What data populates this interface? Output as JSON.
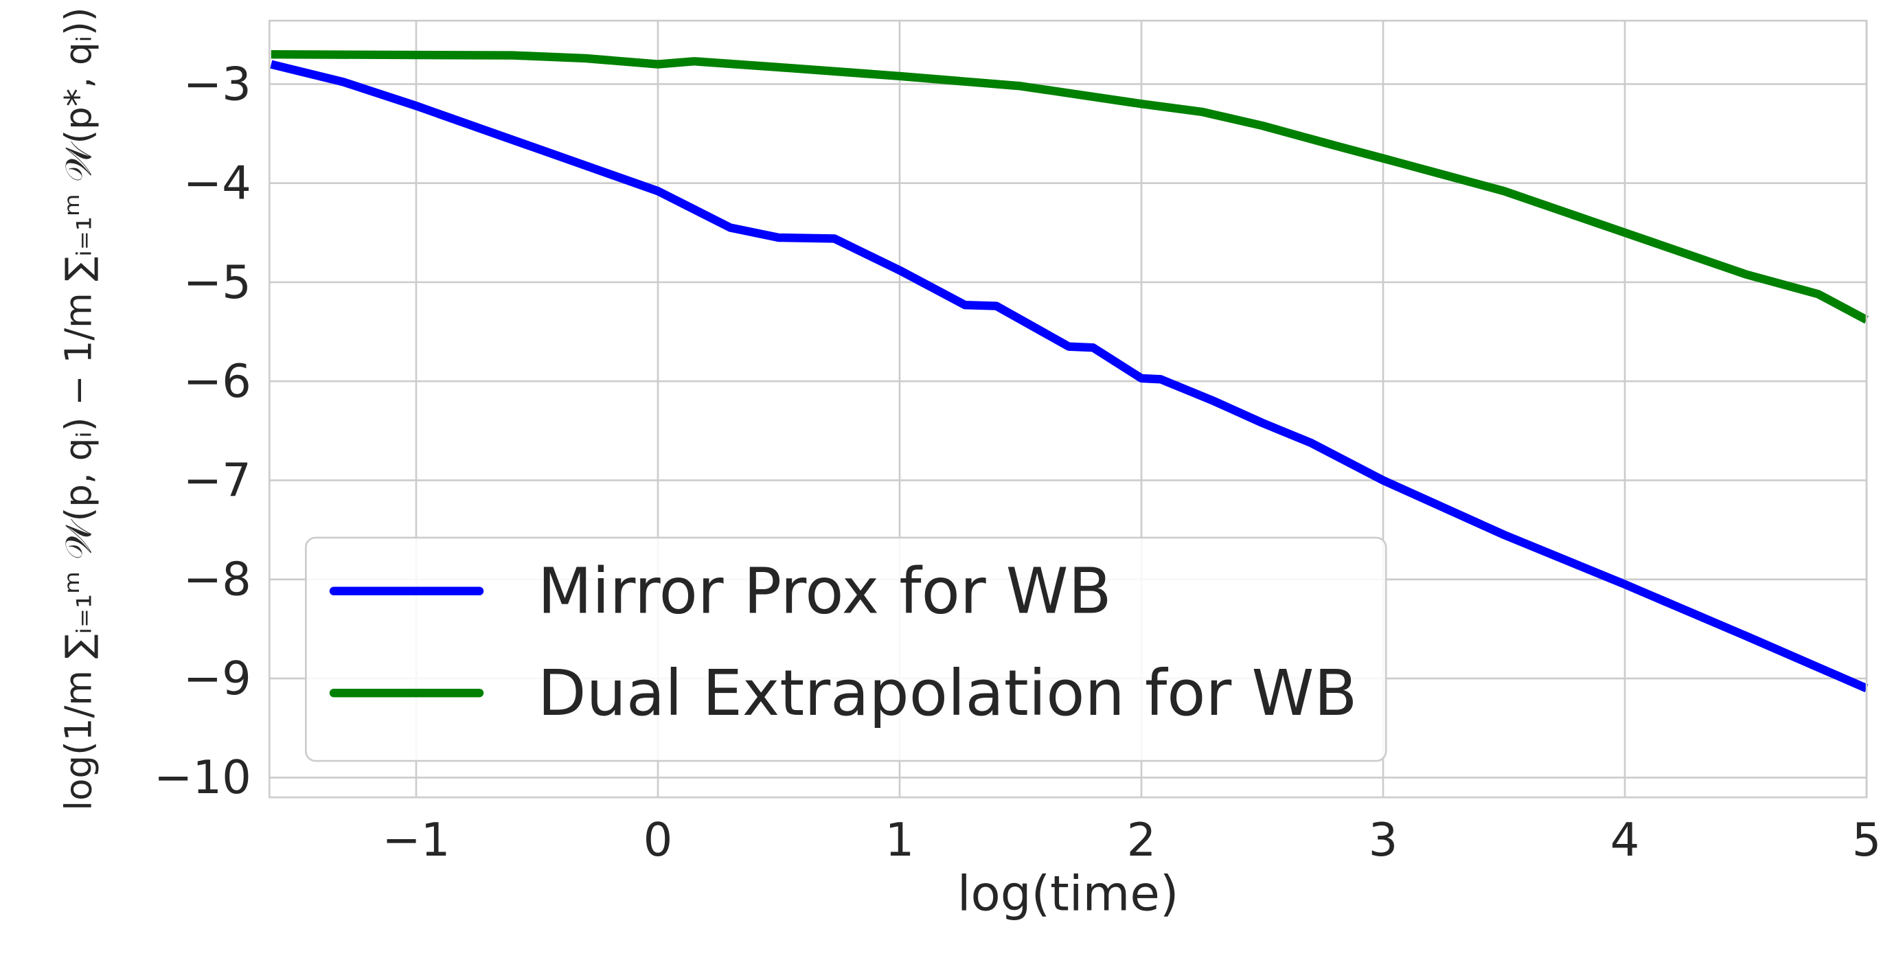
{
  "chart_data": {
    "type": "line",
    "xlabel": "log(time)",
    "ylabel": "log(1/m ∑ᵢ₌₁ᵐ 𝒲(p, qᵢ) − 1/m ∑ᵢ₌₁ᵐ 𝒲(p*, qᵢ))",
    "xlim": [
      -1.607,
      5
    ],
    "ylim": [
      -10.2,
      -2.36
    ],
    "xticks": [
      {
        "value": -1,
        "label": "−1"
      },
      0,
      1,
      2,
      3,
      4,
      5
    ],
    "yticks": [
      {
        "value": -3,
        "label": "−3"
      },
      {
        "value": -4,
        "label": "−4"
      },
      {
        "value": -5,
        "label": "−5"
      },
      {
        "value": -6,
        "label": "−6"
      },
      {
        "value": -7,
        "label": "−7"
      },
      {
        "value": -8,
        "label": "−8"
      },
      {
        "value": -9,
        "label": "−9"
      },
      {
        "value": -10,
        "label": "−10"
      }
    ],
    "grid": true,
    "legend": "lower left",
    "series": [
      {
        "name": "Mirror Prox for WB",
        "color": "#0000ff",
        "x": [
          -1.6,
          -1.3,
          -1,
          -0.5,
          0,
          0.3,
          0.5,
          0.73,
          1.0,
          1.27,
          1.4,
          1.7,
          1.8,
          2.0,
          2.08,
          2.3,
          2.5,
          2.7,
          3.0,
          3.5,
          4.0,
          4.5,
          5.0
        ],
        "values": [
          -2.8,
          -2.98,
          -3.22,
          -3.65,
          -4.08,
          -4.45,
          -4.55,
          -4.56,
          -4.88,
          -5.23,
          -5.24,
          -5.65,
          -5.66,
          -5.97,
          -5.98,
          -6.2,
          -6.42,
          -6.62,
          -7.0,
          -7.55,
          -8.05,
          -8.57,
          -9.1
        ]
      },
      {
        "name": "Dual Extrapolation for WB",
        "color": "#008000",
        "x": [
          -1.6,
          -0.6,
          -0.3,
          0,
          0.15,
          0.5,
          1.0,
          1.5,
          2.0,
          2.25,
          2.5,
          2.8,
          3.0,
          3.5,
          4.0,
          4.5,
          4.8,
          5.0
        ],
        "values": [
          -2.7,
          -2.71,
          -2.74,
          -2.8,
          -2.77,
          -2.83,
          -2.92,
          -3.02,
          -3.2,
          -3.28,
          -3.42,
          -3.62,
          -3.75,
          -4.08,
          -4.5,
          -4.92,
          -5.12,
          -5.38
        ]
      }
    ]
  }
}
